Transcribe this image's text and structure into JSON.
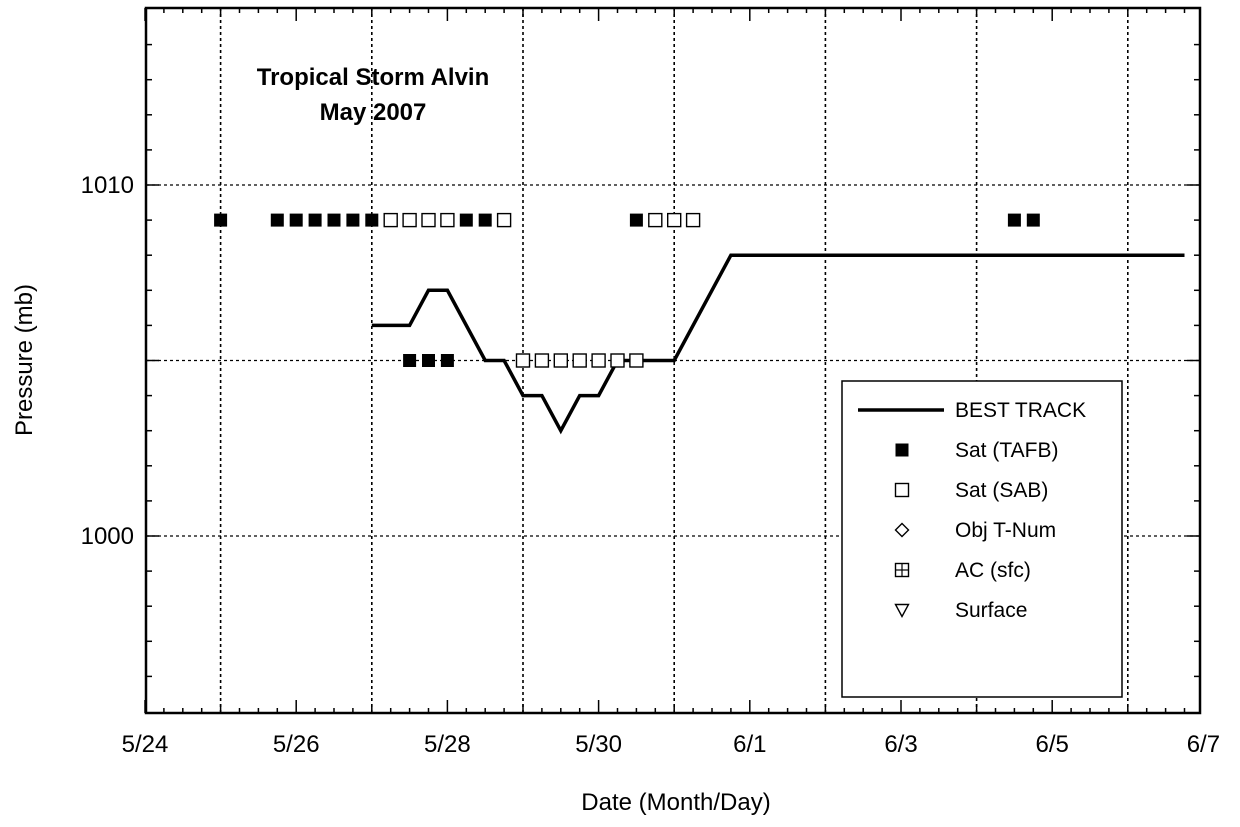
{
  "chart_data": {
    "type": "scatter",
    "title_lines": [
      "Tropical Storm Alvin",
      "May 2007"
    ],
    "xlabel": "Date (Month/Day)",
    "ylabel": "Pressure (mb)",
    "x_ticks": [
      "5/24",
      "5/26",
      "5/28",
      "5/30",
      "6/1",
      "6/3",
      "6/5",
      "6/7"
    ],
    "y_ticks": [
      "1000",
      "1010"
    ],
    "ylim": [
      995,
      1015
    ],
    "grid": true,
    "legend_position": "lower-right",
    "series": [
      {
        "name": "BEST TRACK",
        "kind": "line",
        "x": [
          "5/27 00Z",
          "5/27 12Z",
          "5/27 18Z",
          "5/28 00Z",
          "5/28 12Z",
          "5/28 18Z",
          "5/29 00Z",
          "5/29 06Z",
          "5/29 12Z",
          "5/29 18Z",
          "5/30 00Z",
          "5/30 06Z",
          "5/30 12Z",
          "5/30 18Z",
          "5/31 00Z",
          "5/31 18Z",
          "6/6 18Z"
        ],
        "y": [
          1006,
          1006,
          1007,
          1007,
          1005,
          1005,
          1004,
          1004,
          1003,
          1004,
          1004,
          1005,
          1005,
          1005,
          1005,
          1008,
          1008
        ]
      },
      {
        "name": "Sat (TAFB)",
        "kind": "marker",
        "marker": "filled-square",
        "x": [
          "5/25 00Z",
          "5/25 18Z",
          "5/26 00Z",
          "5/26 06Z",
          "5/26 12Z",
          "5/26 18Z",
          "5/27 00Z",
          "5/27 06Z",
          "5/27 12Z",
          "5/27 18Z",
          "5/28 00Z",
          "5/28 06Z",
          "5/28 12Z",
          "5/28 18Z",
          "5/30 12Z",
          "5/30 18Z",
          "6/4 12Z",
          "6/4 18Z"
        ],
        "y": [
          1009,
          1009,
          1009,
          1009,
          1009,
          1009,
          1009,
          1009,
          1005,
          1005,
          1005,
          1009,
          1009,
          1009,
          1009,
          1009,
          1009,
          1009
        ]
      },
      {
        "name": "Sat (SAB)",
        "kind": "marker",
        "marker": "open-square",
        "x": [
          "5/27 06Z",
          "5/27 12Z",
          "5/27 18Z",
          "5/28 00Z",
          "5/28 18Z",
          "5/29 00Z",
          "5/29 06Z",
          "5/29 12Z",
          "5/29 18Z",
          "5/30 00Z",
          "5/30 06Z",
          "5/30 12Z",
          "5/30 18Z",
          "5/31 00Z",
          "5/31 06Z"
        ],
        "y": [
          1009,
          1009,
          1009,
          1009,
          1009,
          1005,
          1005,
          1005,
          1005,
          1005,
          1005,
          1005,
          1009,
          1009,
          1009
        ]
      },
      {
        "name": "Obj T-Num",
        "kind": "marker",
        "marker": "open-diamond",
        "x": [],
        "y": []
      },
      {
        "name": "AC (sfc)",
        "kind": "marker",
        "marker": "crossed-square",
        "x": [],
        "y": []
      },
      {
        "name": "Surface",
        "kind": "marker",
        "marker": "open-triangle-down",
        "x": [],
        "y": []
      }
    ]
  }
}
